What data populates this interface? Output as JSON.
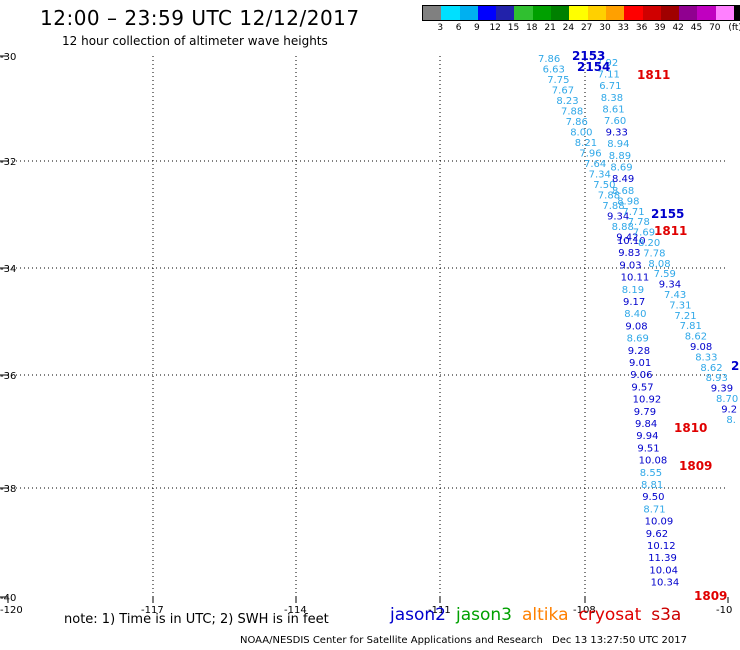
{
  "title": "12:00 – 23:59 UTC 12/12/2017",
  "subtitle": "12 hour collection of altimeter wave heights",
  "legend": {
    "colors": [
      "#808080",
      "#00e0ff",
      "#00b0f0",
      "#0000ff",
      "#2222aa",
      "#30c030",
      "#00a000",
      "#008000",
      "#ffff00",
      "#ffd000",
      "#ffa000",
      "#ff0000",
      "#d00000",
      "#a00000",
      "#900090",
      "#c000c0",
      "#ff80ff",
      "#000000"
    ],
    "labels": [
      "3",
      "6",
      "9",
      "12",
      "15",
      "18",
      "21",
      "24",
      "27",
      "30",
      "33",
      "36",
      "39",
      "42",
      "45",
      "70",
      "(ft)"
    ]
  },
  "axes": {
    "lon_labels": [
      "-120",
      "-117",
      "-114",
      "-111",
      "-108",
      "-10"
    ],
    "lat_labels": [
      "-30",
      "-32",
      "-34",
      "-36",
      "-38",
      "-40"
    ]
  },
  "colors": {
    "jason2": "#0000cc",
    "jason3": "#00a000",
    "altika": "#ff8000",
    "cryosat": "#e00000",
    "s3a": "#cc0000",
    "lightblue": "#30a8e8"
  },
  "passes": {
    "track_a": [
      {
        "t": "7.86",
        "c": "lightblue"
      },
      {
        "t": "6.63",
        "c": "lightblue"
      },
      {
        "t": "7.75",
        "c": "lightblue"
      },
      {
        "t": "7.67",
        "c": "lightblue"
      },
      {
        "t": "8.23",
        "c": "lightblue"
      },
      {
        "t": "7.88",
        "c": "lightblue"
      },
      {
        "t": "7.86",
        "c": "lightblue"
      },
      {
        "t": "8.00",
        "c": "lightblue"
      },
      {
        "t": "8.21",
        "c": "lightblue"
      },
      {
        "t": "7.96",
        "c": "lightblue"
      },
      {
        "t": "7.64",
        "c": "lightblue"
      },
      {
        "t": "7.34",
        "c": "lightblue"
      },
      {
        "t": "7.50",
        "c": "lightblue"
      },
      {
        "t": "7.88",
        "c": "lightblue"
      },
      {
        "t": "7.88",
        "c": "lightblue"
      },
      {
        "t": "9.34",
        "c": "jason2"
      },
      {
        "t": "8.88",
        "c": "lightblue"
      },
      {
        "t": "9.42",
        "c": "jason2"
      },
      {
        "t": "10.10",
        "c": "jason2"
      },
      {
        "t": "9.83",
        "c": "jason2"
      },
      {
        "t": "9.03",
        "c": "jason2"
      },
      {
        "t": "10.11",
        "c": "jason2"
      },
      {
        "t": "8.19",
        "c": "lightblue"
      },
      {
        "t": "9.17",
        "c": "jason2"
      },
      {
        "t": "8.40",
        "c": "lightblue"
      },
      {
        "t": "9.08",
        "c": "jason2"
      },
      {
        "t": "8.69",
        "c": "lightblue"
      },
      {
        "t": "9.28",
        "c": "jason2"
      },
      {
        "t": "9.01",
        "c": "jason2"
      },
      {
        "t": "9.06",
        "c": "jason2"
      },
      {
        "t": "9.57",
        "c": "jason2"
      },
      {
        "t": "10.92",
        "c": "jason2"
      },
      {
        "t": "9.79",
        "c": "jason2"
      },
      {
        "t": "9.84",
        "c": "jason2"
      },
      {
        "t": "9.94",
        "c": "jason2"
      },
      {
        "t": "9.51",
        "c": "jason2"
      },
      {
        "t": "10.08",
        "c": "jason2"
      },
      {
        "t": "8.55",
        "c": "lightblue"
      },
      {
        "t": "8.81",
        "c": "lightblue"
      },
      {
        "t": "9.50",
        "c": "jason2"
      },
      {
        "t": "8.71",
        "c": "lightblue"
      },
      {
        "t": "10.09",
        "c": "jason2"
      },
      {
        "t": "9.62",
        "c": "jason2"
      },
      {
        "t": "10.12",
        "c": "jason2"
      },
      {
        "t": "11.39",
        "c": "jason2"
      },
      {
        "t": "10.04",
        "c": "jason2"
      },
      {
        "t": "10.34",
        "c": "jason2"
      }
    ],
    "track_b": [
      {
        "t": "7.92",
        "c": "lightblue"
      },
      {
        "t": "7.11",
        "c": "lightblue"
      },
      {
        "t": "6.71",
        "c": "lightblue"
      },
      {
        "t": "8.38",
        "c": "lightblue"
      },
      {
        "t": "8.61",
        "c": "lightblue"
      },
      {
        "t": "7.60",
        "c": "lightblue"
      },
      {
        "t": "9.33",
        "c": "jason2"
      },
      {
        "t": "8.94",
        "c": "lightblue"
      },
      {
        "t": "8.89",
        "c": "lightblue"
      },
      {
        "t": "8.69",
        "c": "lightblue"
      },
      {
        "t": "8.49",
        "c": "jason2"
      },
      {
        "t": "8.68",
        "c": "lightblue"
      },
      {
        "t": "8.98",
        "c": "lightblue"
      },
      {
        "t": "7.71",
        "c": "lightblue"
      },
      {
        "t": "7.78",
        "c": "lightblue"
      },
      {
        "t": "7.69",
        "c": "lightblue"
      },
      {
        "t": "8.20",
        "c": "lightblue"
      },
      {
        "t": "7.78",
        "c": "lightblue"
      },
      {
        "t": "8.08",
        "c": "lightblue"
      },
      {
        "t": "7.59",
        "c": "lightblue"
      },
      {
        "t": "9.34",
        "c": "jason2"
      },
      {
        "t": "7.43",
        "c": "lightblue"
      },
      {
        "t": "7.31",
        "c": "lightblue"
      },
      {
        "t": "7.21",
        "c": "lightblue"
      },
      {
        "t": "7.81",
        "c": "lightblue"
      },
      {
        "t": "8.62",
        "c": "lightblue"
      },
      {
        "t": "9.08",
        "c": "jason2"
      },
      {
        "t": "8.33",
        "c": "lightblue"
      },
      {
        "t": "8.62",
        "c": "lightblue"
      },
      {
        "t": "8.93",
        "c": "lightblue"
      },
      {
        "t": "9.39",
        "c": "jason2"
      },
      {
        "t": "8.70",
        "c": "lightblue"
      },
      {
        "t": "9.2",
        "c": "jason2"
      },
      {
        "t": "8.",
        "c": "lightblue"
      }
    ],
    "time_labels": [
      {
        "t": "2153",
        "c": "jason2"
      },
      {
        "t": "2154",
        "c": "jason2"
      },
      {
        "t": "1811",
        "c": "cryosat"
      },
      {
        "t": "2155",
        "c": "jason2"
      },
      {
        "t": "1811",
        "c": "cryosat"
      },
      {
        "t": "1810",
        "c": "cryosat"
      },
      {
        "t": "1809",
        "c": "cryosat"
      },
      {
        "t": "1809",
        "c": "cryosat"
      },
      {
        "t": "2",
        "c": "jason2"
      }
    ]
  },
  "note": "note: 1) Time is in UTC; 2) SWH is in feet",
  "missions": [
    {
      "label": "jason2",
      "c": "jason2"
    },
    {
      "label": "jason3",
      "c": "jason3"
    },
    {
      "label": "altika",
      "c": "altika"
    },
    {
      "label": "cryosat",
      "c": "cryosat"
    },
    {
      "label": "s3a",
      "c": "s3a"
    }
  ],
  "credit": "NOAA/NESDIS Center for Satellite Applications and Research",
  "timestamp": "Dec 13 13:27:50 UTC 2017"
}
